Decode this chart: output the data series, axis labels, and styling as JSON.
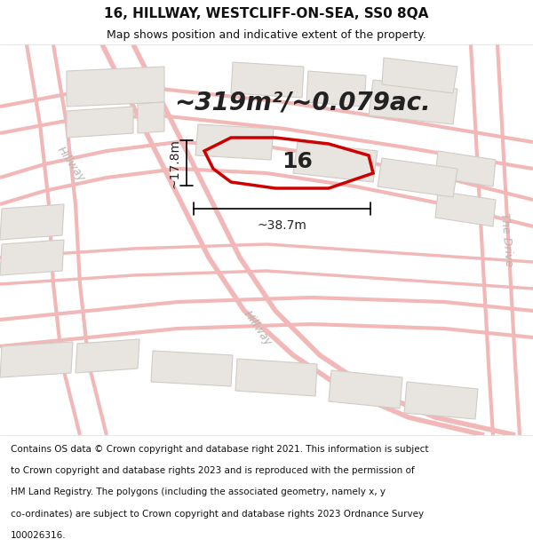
{
  "title_line1": "16, HILLWAY, WESTCLIFF-ON-SEA, SS0 8QA",
  "title_line2": "Map shows position and indicative extent of the property.",
  "area_text": "~319m²/~0.079ac.",
  "label_16": "16",
  "dim_width": "~38.7m",
  "dim_height": "~17.8m",
  "footer_text": "Contains OS data © Crown copyright and database right 2021. This information is subject to Crown copyright and database rights 2023 and is reproduced with the permission of HM Land Registry. The polygons (including the associated geometry, namely x, y co-ordinates) are subject to Crown copyright and database rights 2023 Ordnance Survey 100026316.",
  "bg_color": "#ffffff",
  "map_bg": "#ffffff",
  "road_color_light": "#f2b8b8",
  "plot_color": "#cc0000",
  "building_fill": "#e8e5e0",
  "building_edge": "#d0ccc6",
  "title_fontsize": 11,
  "subtitle_fontsize": 9,
  "area_fontsize": 20,
  "label_fontsize": 18,
  "dim_fontsize": 10,
  "footer_fontsize": 7.5,
  "road_label_color": "#b8b4af",
  "road_label_fontsize": 9,
  "road_lw": 3.5
}
